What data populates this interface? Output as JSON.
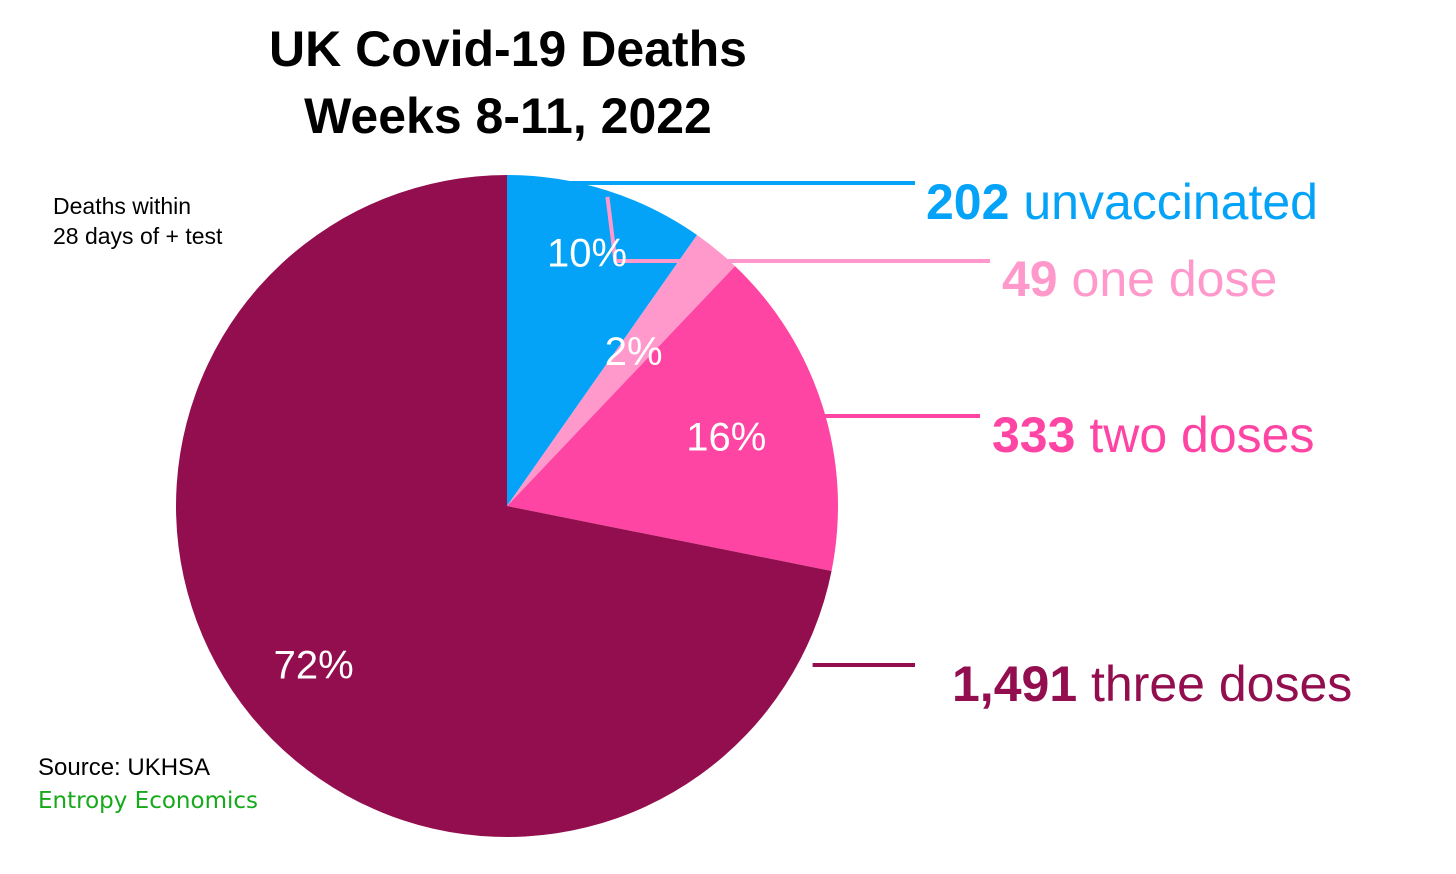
{
  "chart_data": {
    "type": "pie",
    "title": [
      "UK Covid-19 Deaths",
      "Weeks 8-11, 2022"
    ],
    "note": [
      "Deaths within",
      "28 days of + test"
    ],
    "source": "Source: UKHSA",
    "brand": "Entropy Economics",
    "slices": [
      {
        "value_label": "202",
        "value": 202,
        "name": "unvaccinated",
        "percent_label": "10%",
        "color": "#05A3F7"
      },
      {
        "value_label": "49",
        "value": 49,
        "name": "one dose",
        "percent_label": "2%",
        "color": "#FF99CC"
      },
      {
        "value_label": "333",
        "value": 333,
        "name": "two doses",
        "percent_label": "16%",
        "color": "#FF45A4"
      },
      {
        "value_label": "1,491",
        "value": 1491,
        "name": "three doses",
        "percent_label": "72%",
        "color": "#930E4E"
      }
    ],
    "brand_color": "#16A91A"
  }
}
